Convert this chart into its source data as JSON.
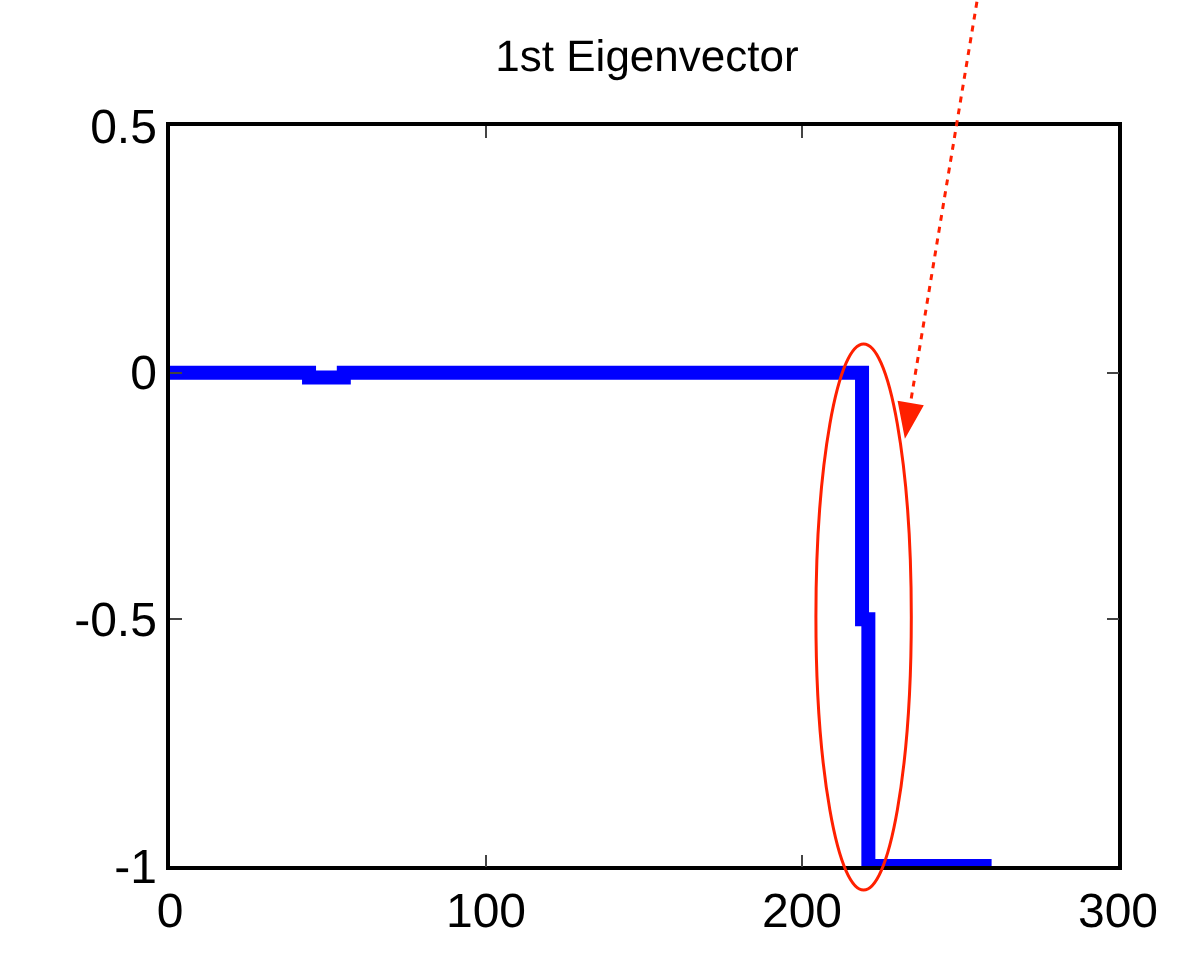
{
  "chart_data": {
    "type": "line",
    "title": "1st Eigenvector",
    "x": [
      0,
      44,
      44,
      55,
      55,
      219,
      219,
      221,
      221,
      260
    ],
    "series": [
      {
        "color": "#0000ff",
        "values": [
          0,
          0,
          -0.01,
          -0.01,
          0,
          0,
          -0.5,
          -0.5,
          -1,
          -1
        ]
      }
    ],
    "xlim": [
      0,
      300
    ],
    "xticks": [
      0,
      100,
      200,
      300
    ],
    "ylim": [
      -1,
      0.5
    ],
    "yticks": [
      -1,
      -0.5,
      0,
      0.5
    ],
    "marker": "none",
    "line_style": "solid"
  }
}
